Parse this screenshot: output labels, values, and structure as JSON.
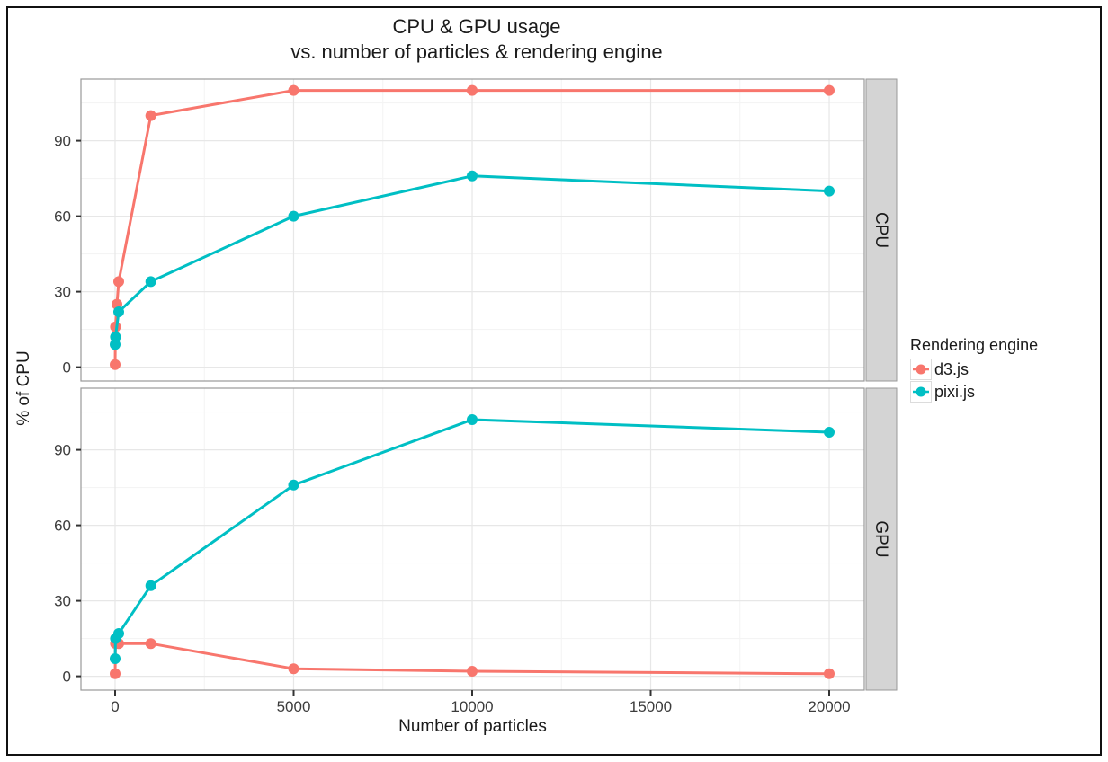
{
  "figure": {
    "title_lines": [
      "CPU & GPU usage",
      "vs. number of particles & rendering engine"
    ],
    "x_axis_label": "Number of particles",
    "y_axis_label": "% of CPU"
  },
  "legend": {
    "title": "Rendering engine",
    "entries": [
      {
        "label": "d3.js",
        "color": "#F8766D"
      },
      {
        "label": "pixi.js",
        "color": "#00BFC4"
      }
    ]
  },
  "colors": {
    "d3js": "#F8766D",
    "pixijs": "#00BFC4",
    "strip_bg": "#D4D4D4",
    "strip_border": "#999999",
    "panel_border": "#999999",
    "grid_major": "#E7E7E7",
    "grid_minor": "#F3F3F3",
    "tick": "#333333",
    "tick_label": "#3C3C3C",
    "strip_label": "#1A1A1A"
  },
  "chart_data": {
    "type": "line",
    "title": "CPU & GPU usage vs. number of particles & rendering engine",
    "xlabel": "Number of particles",
    "ylabel": "% of CPU",
    "legend_title": "Rendering engine",
    "legend_position": "right",
    "grid": true,
    "x_ticks": [
      0,
      5000,
      10000,
      15000,
      20000
    ],
    "y_ticks": [
      0,
      30,
      60,
      90
    ],
    "x_minor_ticks": [
      2500,
      7500,
      12500,
      17500
    ],
    "y_minor_ticks": [
      15,
      45,
      75,
      105
    ],
    "x_range": [
      -957,
      20982
    ],
    "y_range": [
      -5.5,
      114.5
    ],
    "facets": [
      {
        "label": "CPU",
        "series": [
          {
            "name": "d3.js",
            "color": "#F8766D",
            "points": [
              [
                1,
                1
              ],
              [
                10,
                16
              ],
              [
                50,
                25
              ],
              [
                100,
                34
              ],
              [
                1000,
                100
              ],
              [
                5000,
                110
              ],
              [
                10000,
                110
              ],
              [
                20000,
                110
              ]
            ]
          },
          {
            "name": "pixi.js",
            "color": "#00BFC4",
            "points": [
              [
                1,
                9
              ],
              [
                10,
                12
              ],
              [
                100,
                22
              ],
              [
                1000,
                34
              ],
              [
                5000,
                60
              ],
              [
                10000,
                76
              ],
              [
                20000,
                70
              ]
            ]
          }
        ]
      },
      {
        "label": "GPU",
        "series": [
          {
            "name": "d3.js",
            "color": "#F8766D",
            "points": [
              [
                1,
                1
              ],
              [
                10,
                13
              ],
              [
                100,
                13
              ],
              [
                1000,
                13
              ],
              [
                5000,
                3
              ],
              [
                10000,
                2
              ],
              [
                20000,
                1
              ]
            ]
          },
          {
            "name": "pixi.js",
            "color": "#00BFC4",
            "points": [
              [
                1,
                7
              ],
              [
                10,
                15
              ],
              [
                100,
                17
              ],
              [
                1000,
                36
              ],
              [
                5000,
                76
              ],
              [
                10000,
                102
              ],
              [
                20000,
                97
              ]
            ]
          }
        ]
      }
    ]
  }
}
